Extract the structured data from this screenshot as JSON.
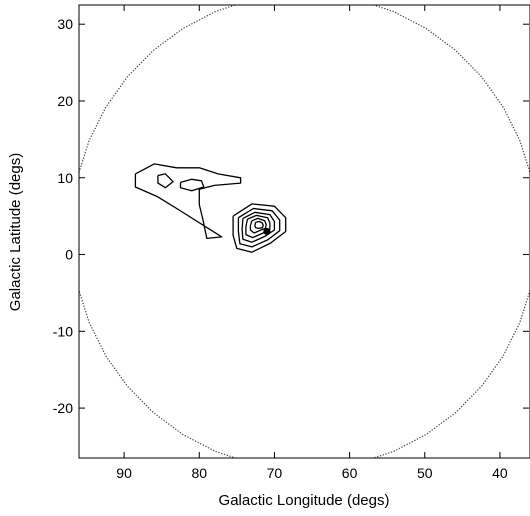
{
  "chart_data": {
    "type": "contour",
    "xlabel": "Galactic Longitude (degs)",
    "ylabel": "Galactic Latitude (degs)",
    "xlim": [
      96,
      36
    ],
    "ylim": [
      -26.5,
      32.5
    ],
    "xticks": [
      90,
      80,
      70,
      60,
      50,
      40
    ],
    "yticks": [
      30,
      20,
      10,
      0,
      -10,
      -20
    ],
    "xtick_labels": [
      "90",
      "80",
      "70",
      "60",
      "50",
      "40"
    ],
    "ytick_labels": [
      "30",
      "20",
      "10",
      "0",
      "-10",
      "-20"
    ],
    "grid": false,
    "field_boundary": {
      "style": "dotted",
      "center": [
        66,
        3
      ],
      "radius_deg": 31
    },
    "marker": {
      "x": 71,
      "y": 3,
      "style": "filled-circle"
    },
    "contours": [
      {
        "region": "left-cluster",
        "points": [
          [
            88.5,
            10.5
          ],
          [
            86,
            11.8
          ],
          [
            83,
            11.3
          ],
          [
            80,
            11.3
          ],
          [
            77.5,
            10.5
          ],
          [
            74.5,
            10
          ],
          [
            74.5,
            9.3
          ],
          [
            78,
            9
          ],
          [
            80,
            8.5
          ],
          [
            80,
            6.5
          ],
          [
            79.5,
            4.5
          ],
          [
            79,
            2.1
          ],
          [
            77,
            2.3
          ],
          [
            83,
            6
          ],
          [
            85.5,
            7.5
          ],
          [
            88.5,
            8.8
          ],
          [
            88.5,
            10.5
          ]
        ]
      },
      {
        "region": "left-cluster",
        "points": [
          [
            85.5,
            10.3
          ],
          [
            84.5,
            10.5
          ],
          [
            83.5,
            9.5
          ],
          [
            84.5,
            8.7
          ],
          [
            85.5,
            9.3
          ],
          [
            85.5,
            10.3
          ]
        ]
      },
      {
        "region": "left-cluster",
        "points": [
          [
            82.5,
            9.4
          ],
          [
            81,
            9.8
          ],
          [
            79.7,
            9.6
          ],
          [
            79.4,
            8.8
          ],
          [
            81,
            8.3
          ],
          [
            82.5,
            8.7
          ],
          [
            82.5,
            9.4
          ]
        ]
      },
      {
        "region": "right-cluster",
        "points": [
          [
            75.5,
            5
          ],
          [
            73,
            6.6
          ],
          [
            70,
            6.3
          ],
          [
            68.5,
            4.8
          ],
          [
            68.5,
            3
          ],
          [
            70.5,
            1.5
          ],
          [
            73,
            0.3
          ],
          [
            75,
            0.8
          ],
          [
            75.5,
            2.5
          ],
          [
            75.5,
            5
          ]
        ]
      },
      {
        "region": "right-cluster",
        "points": [
          [
            74.8,
            4.8
          ],
          [
            72.8,
            6
          ],
          [
            70.3,
            5.7
          ],
          [
            69.3,
            4.5
          ],
          [
            69.3,
            3.1
          ],
          [
            70.9,
            1.9
          ],
          [
            73,
            1
          ],
          [
            74.6,
            1.4
          ],
          [
            74.8,
            3
          ],
          [
            74.8,
            4.8
          ]
        ]
      },
      {
        "region": "right-cluster",
        "points": [
          [
            74.2,
            4.7
          ],
          [
            72.6,
            5.5
          ],
          [
            70.6,
            5.2
          ],
          [
            70,
            4.3
          ],
          [
            70,
            3.2
          ],
          [
            71.2,
            2.4
          ],
          [
            73,
            1.6
          ],
          [
            74.2,
            2
          ],
          [
            74.3,
            3.3
          ],
          [
            74.2,
            4.7
          ]
        ]
      },
      {
        "region": "right-cluster",
        "points": [
          [
            73.6,
            4.6
          ],
          [
            72.4,
            5.1
          ],
          [
            70.9,
            4.8
          ],
          [
            70.6,
            4.1
          ],
          [
            70.6,
            3.3
          ],
          [
            71.5,
            2.8
          ],
          [
            72.9,
            2.2
          ],
          [
            73.8,
            2.6
          ],
          [
            73.8,
            3.6
          ],
          [
            73.6,
            4.6
          ]
        ]
      },
      {
        "region": "right-cluster",
        "points": [
          [
            73,
            4.4
          ],
          [
            72.2,
            4.7
          ],
          [
            71.3,
            4.4
          ],
          [
            71.1,
            3.9
          ],
          [
            71.2,
            3.4
          ],
          [
            71.8,
            3.2
          ],
          [
            72.7,
            2.8
          ],
          [
            73.2,
            3.2
          ],
          [
            73.2,
            3.8
          ],
          [
            73,
            4.4
          ]
        ]
      },
      {
        "region": "right-cluster",
        "points": [
          [
            72.5,
            4.2
          ],
          [
            72,
            4.3
          ],
          [
            71.6,
            4.1
          ],
          [
            71.5,
            3.8
          ],
          [
            71.6,
            3.5
          ],
          [
            72.1,
            3.4
          ],
          [
            72.5,
            3.5
          ],
          [
            72.6,
            3.8
          ],
          [
            72.5,
            4.2
          ]
        ]
      }
    ]
  }
}
